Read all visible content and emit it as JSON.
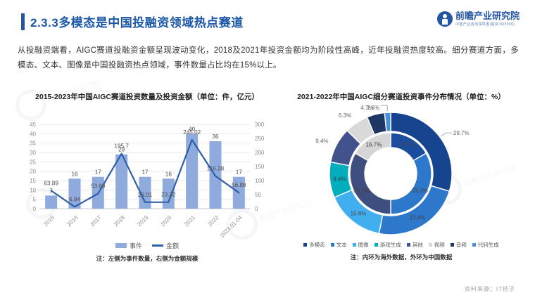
{
  "page": {
    "title": "2.3.3多模态是中国投融资领域热点赛道",
    "body": "从投融资端看，AIGC赛道投融资金额呈现波动变化，2018及2021年投资金额均为阶段性高峰，近年投融资热度较高。细分赛道方面，多模态、文本、图像是中国投融资热点领域，事件数量占比均在15%以上。",
    "source": "资料来源：IT桔子",
    "watermark": "前瞻产业研究院"
  },
  "brand": {
    "name": "前瞻产业研究院",
    "tagline": "中国产业咨询领导者(股票:835599)",
    "color": "#2456A4"
  },
  "chart_data": [
    {
      "type": "bar",
      "title": "2015-2023年中国AIGC赛道投资数量及投资金额（单位：件，亿元）",
      "categories": [
        "2015",
        "2016",
        "2017",
        "2018",
        "2019",
        "2020",
        "2021",
        "2022",
        "2023.01-04"
      ],
      "series": [
        {
          "name": "事件",
          "type": "bar",
          "axis": "left",
          "color": "#8FAADC",
          "values": [
            7,
            16,
            17,
            29,
            17,
            16,
            40,
            36,
            17
          ]
        },
        {
          "name": "金额",
          "type": "line",
          "axis": "right",
          "color": "#2E5FA8",
          "values": [
            63.89,
            6.84,
            53.69,
            195.7,
            23.01,
            23.32,
            245.02,
            116.28,
            56.88
          ]
        }
      ],
      "left_axis": {
        "min": 0,
        "max": 45,
        "step": 5
      },
      "right_axis": {
        "min": 0,
        "max": 300,
        "step": 50
      },
      "grid": true,
      "legend_position": "bottom",
      "note": "注：左侧为事件数量，右侧为金额规模"
    },
    {
      "type": "pie",
      "subtype": "double-donut",
      "title": "2021-2022年中国AIGC细分赛道投资事件分布情况（单位：%）",
      "legend": [
        "多模态",
        "文本",
        "图像",
        "游戏生成",
        "其他",
        "视频",
        "音频",
        "代码生成"
      ],
      "outer_ring": {
        "name": "中国数据",
        "values": [
          29.7,
          23.4,
          15.6,
          9.4,
          9.4,
          6.3,
          4.7,
          1.6
        ],
        "colors": [
          "#17448E",
          "#2E78CB",
          "#41AEEF",
          "#00AEBE",
          "#41528C",
          "#D9D9D9",
          "#1E3765",
          "#4A90D9"
        ],
        "label_modes": [
          "leader",
          "in",
          "in",
          "in",
          "out",
          "out",
          "out",
          "leader"
        ]
      },
      "inner_ring": {
        "name": "海外数据",
        "values": [
          16.7,
          33.3,
          33.3,
          16.7
        ],
        "colors": [
          "#1B4D9E",
          "#2E78CB",
          "#3E4E7E",
          "#D6D6D6"
        ]
      },
      "legend_position": "bottom",
      "note": "注：内环为海外数据，外环为中国数据"
    }
  ]
}
